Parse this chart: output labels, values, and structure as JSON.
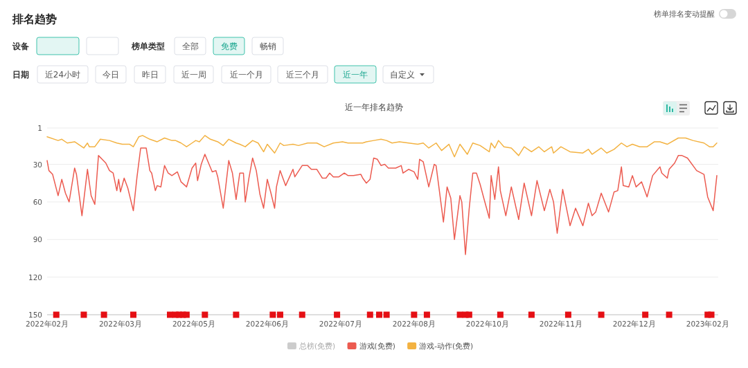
{
  "chart_data": [
    {
      "type": "other",
      "title": "排名趋势",
      "annotations": [
        "设备",
        "榜单类型",
        "全部",
        "免费",
        "畅销",
        "日期",
        "近24小时",
        "今日",
        "昨日",
        "近一周",
        "近一个月",
        "近三个月",
        "近一年",
        "自定义",
        "榜单排名变动提醒"
      ]
    },
    {
      "type": "line",
      "title": "近一年排名趋势",
      "xlim": [
        "2022-02-10",
        "2023-02-10"
      ],
      "xticks": [
        {
          "value": "2022-02-10",
          "label": "2022年02月"
        },
        {
          "value": "2022-03-22",
          "label": "2022年03月"
        },
        {
          "value": "2022-05-01",
          "label": "2022年05月"
        },
        {
          "value": "2022-06-10",
          "label": "2022年06月"
        },
        {
          "value": "2022-07-20",
          "label": "2022年07月"
        },
        {
          "value": "2022-08-29",
          "label": "2022年08月"
        },
        {
          "value": "2022-10-08",
          "label": "2022年10月"
        },
        {
          "value": "2022-11-17",
          "label": "2022年11月"
        },
        {
          "value": "2022-12-27",
          "label": "2022年12月"
        },
        {
          "value": "2023-02-05",
          "label": "2023年02月"
        }
      ],
      "ylim": [
        150,
        1
      ],
      "yticks": [
        1,
        30,
        60,
        90,
        120,
        150
      ],
      "grid": "y",
      "legend": "bottom",
      "series": [
        {
          "name": "总榜(免费)",
          "color": "#cccccc"
        },
        {
          "name": "游戏(免费)",
          "color": "#ec5b50",
          "x": [
            "2022-02-10",
            "2022-02-11",
            "2022-02-13",
            "2022-02-16",
            "2022-02-18",
            "2022-02-20",
            "2022-02-22",
            "2022-02-25",
            "2022-02-26",
            "2022-03-01",
            "2022-03-04",
            "2022-03-06",
            "2022-03-08",
            "2022-03-10",
            "2022-03-12",
            "2022-03-14",
            "2022-03-16",
            "2022-03-18",
            "2022-03-20",
            "2022-03-21",
            "2022-03-22",
            "2022-03-24",
            "2022-03-26",
            "2022-03-29",
            "2022-03-31",
            "2022-04-02",
            "2022-04-05",
            "2022-04-07",
            "2022-04-08",
            "2022-04-10",
            "2022-04-11",
            "2022-04-13",
            "2022-04-15",
            "2022-04-17",
            "2022-04-19",
            "2022-04-22",
            "2022-04-24",
            "2022-04-27",
            "2022-04-30",
            "2022-05-02",
            "2022-05-03",
            "2022-05-05",
            "2022-05-07",
            "2022-05-09",
            "2022-05-11",
            "2022-05-13",
            "2022-05-14",
            "2022-05-17",
            "2022-05-20",
            "2022-05-22",
            "2022-05-24",
            "2022-05-26",
            "2022-05-28",
            "2022-05-29",
            "2022-05-31",
            "2022-06-02",
            "2022-06-04",
            "2022-06-06",
            "2022-06-08",
            "2022-06-10",
            "2022-06-12",
            "2022-06-14",
            "2022-06-15",
            "2022-06-17",
            "2022-06-20",
            "2022-06-24",
            "2022-06-25",
            "2022-06-29",
            "2022-07-02",
            "2022-07-04",
            "2022-07-07",
            "2022-07-10",
            "2022-07-12",
            "2022-07-14",
            "2022-07-16",
            "2022-07-19",
            "2022-07-22",
            "2022-07-24",
            "2022-07-27",
            "2022-07-31",
            "2022-08-01",
            "2022-08-03",
            "2022-08-05",
            "2022-08-07",
            "2022-08-09",
            "2022-08-11",
            "2022-08-13",
            "2022-08-15",
            "2022-08-19",
            "2022-08-22",
            "2022-08-23",
            "2022-08-26",
            "2022-08-29",
            "2022-08-31",
            "2022-09-01",
            "2022-09-03",
            "2022-09-06",
            "2022-09-09",
            "2022-09-10",
            "2022-09-14",
            "2022-09-16",
            "2022-09-18",
            "2022-09-20",
            "2022-09-23",
            "2022-09-24",
            "2022-09-26",
            "2022-09-28",
            "2022-09-30",
            "2022-10-02",
            "2022-10-04",
            "2022-10-06",
            "2022-10-09",
            "2022-10-10",
            "2022-10-12",
            "2022-10-14",
            "2022-10-15",
            "2022-10-18",
            "2022-10-21",
            "2022-10-25",
            "2022-10-28",
            "2022-11-01",
            "2022-11-04",
            "2022-11-08",
            "2022-11-11",
            "2022-11-13",
            "2022-11-15",
            "2022-11-18",
            "2022-11-22",
            "2022-11-25",
            "2022-11-27",
            "2022-11-29",
            "2022-12-02",
            "2022-12-04",
            "2022-12-06",
            "2022-12-09",
            "2022-12-13",
            "2022-12-16",
            "2022-12-18",
            "2022-12-20",
            "2022-12-21",
            "2022-12-24",
            "2022-12-26",
            "2022-12-28",
            "2022-12-31",
            "2023-01-03",
            "2023-01-06",
            "2023-01-10",
            "2023-01-11",
            "2023-01-14",
            "2023-01-15",
            "2023-01-18",
            "2023-01-20",
            "2023-01-22",
            "2023-01-25",
            "2023-01-30",
            "2023-02-03",
            "2023-02-05",
            "2023-02-08",
            "2023-02-10"
          ],
          "values": [
            27,
            35,
            38,
            55,
            42,
            53,
            60,
            33,
            38,
            71,
            34,
            55,
            62,
            23,
            26,
            29,
            35,
            37,
            51,
            42,
            52,
            41,
            49,
            67,
            40,
            17,
            17,
            35,
            37,
            51,
            47,
            48,
            31,
            37,
            39,
            36,
            44,
            48,
            33,
            29,
            43,
            30,
            22,
            29,
            36,
            35,
            40,
            65,
            27,
            37,
            58,
            37,
            37,
            60,
            41,
            25,
            35,
            54,
            65,
            42,
            53,
            65,
            48,
            35,
            47,
            34,
            40,
            31,
            31,
            34,
            34,
            41,
            41,
            37,
            40,
            40,
            37,
            39,
            39,
            38,
            41,
            45,
            42,
            25,
            26,
            31,
            30,
            33,
            33,
            31,
            37,
            34,
            36,
            42,
            26,
            28,
            48,
            30,
            31,
            76,
            48,
            57,
            90,
            55,
            60,
            102,
            66,
            37,
            37,
            46,
            57,
            73,
            39,
            58,
            32,
            51,
            71,
            48,
            74,
            45,
            71,
            43,
            67,
            50,
            60,
            85,
            50,
            79,
            65,
            72,
            79,
            61,
            71,
            68,
            53,
            68,
            52,
            51,
            32,
            47,
            48,
            39,
            48,
            44,
            56,
            39,
            32,
            37,
            41,
            34,
            29,
            23,
            23,
            25,
            35,
            38,
            56,
            67,
            39
          ]
        },
        {
          "name": "游戏-动作(免费)",
          "color": "#f3b241",
          "x": [
            "2022-02-10",
            "2022-02-16",
            "2022-02-18",
            "2022-02-21",
            "2022-02-25",
            "2022-03-02",
            "2022-03-04",
            "2022-03-05",
            "2022-03-08",
            "2022-03-11",
            "2022-03-16",
            "2022-03-20",
            "2022-03-23",
            "2022-03-27",
            "2022-03-29",
            "2022-04-01",
            "2022-04-03",
            "2022-04-07",
            "2022-04-11",
            "2022-04-15",
            "2022-04-19",
            "2022-04-21",
            "2022-04-24",
            "2022-04-27",
            "2022-04-30",
            "2022-05-02",
            "2022-05-04",
            "2022-05-07",
            "2022-05-10",
            "2022-05-14",
            "2022-05-17",
            "2022-05-20",
            "2022-05-24",
            "2022-05-26",
            "2022-05-29",
            "2022-06-02",
            "2022-06-05",
            "2022-06-08",
            "2022-06-10",
            "2022-06-14",
            "2022-06-17",
            "2022-06-19",
            "2022-06-24",
            "2022-06-27",
            "2022-07-02",
            "2022-07-07",
            "2022-07-11",
            "2022-07-16",
            "2022-07-21",
            "2022-07-24",
            "2022-08-01",
            "2022-08-03",
            "2022-08-07",
            "2022-08-11",
            "2022-08-14",
            "2022-08-17",
            "2022-08-21",
            "2022-08-26",
            "2022-08-31",
            "2022-09-03",
            "2022-09-06",
            "2022-09-10",
            "2022-09-13",
            "2022-09-17",
            "2022-09-20",
            "2022-09-23",
            "2022-09-27",
            "2022-09-30",
            "2022-10-04",
            "2022-10-09",
            "2022-10-10",
            "2022-10-12",
            "2022-10-14",
            "2022-10-17",
            "2022-10-21",
            "2022-10-25",
            "2022-10-28",
            "2022-11-01",
            "2022-11-05",
            "2022-11-08",
            "2022-11-12",
            "2022-11-13",
            "2022-11-17",
            "2022-11-22",
            "2022-11-29",
            "2022-12-02",
            "2022-12-04",
            "2022-12-09",
            "2022-12-12",
            "2022-12-16",
            "2022-12-20",
            "2022-12-23",
            "2022-12-26",
            "2022-12-30",
            "2023-01-03",
            "2023-01-07",
            "2023-01-10",
            "2023-01-14",
            "2023-01-20",
            "2023-01-24",
            "2023-01-28",
            "2023-02-03",
            "2023-02-06",
            "2023-02-08",
            "2023-02-10"
          ],
          "values": [
            8,
            11,
            10,
            13,
            12,
            17,
            13,
            16,
            16,
            10,
            11,
            13,
            14,
            14,
            16,
            8,
            7,
            10,
            12,
            9,
            11,
            11,
            13,
            16,
            13,
            11,
            12,
            7,
            10,
            12,
            15,
            10,
            13,
            14,
            16,
            11,
            13,
            20,
            14,
            21,
            13,
            15,
            14,
            15,
            13,
            13,
            16,
            13,
            12,
            13,
            13,
            12,
            11,
            10,
            11,
            13,
            12,
            13,
            14,
            13,
            17,
            13,
            19,
            14,
            24,
            14,
            22,
            13,
            15,
            20,
            13,
            17,
            11,
            16,
            17,
            23,
            16,
            20,
            16,
            20,
            16,
            21,
            16,
            20,
            21,
            18,
            22,
            17,
            21,
            18,
            13,
            16,
            14,
            16,
            16,
            12,
            12,
            14,
            9,
            9,
            11,
            13,
            16,
            16,
            13
          ]
        },
        {
          "type": "scatter",
          "color": "#e50f14",
          "marker": "square",
          "x": [
            "2022-02-15",
            "2022-03-02",
            "2022-03-13",
            "2022-03-29",
            "2022-04-18",
            "2022-04-21",
            "2022-04-23",
            "2022-04-25",
            "2022-04-27",
            "2022-05-07",
            "2022-05-24",
            "2022-06-13",
            "2022-06-17",
            "2022-06-29",
            "2022-07-18",
            "2022-08-05",
            "2022-08-10",
            "2022-08-14",
            "2022-08-29",
            "2022-09-05",
            "2022-09-23",
            "2022-09-26",
            "2022-09-28",
            "2022-10-15",
            "2022-11-01",
            "2022-11-21",
            "2022-12-09",
            "2023-01-02",
            "2023-01-15",
            "2023-02-05",
            "2023-02-07"
          ],
          "values": [
            150,
            150,
            150,
            150,
            150,
            150,
            150,
            150,
            150,
            150,
            150,
            150,
            150,
            150,
            150,
            150,
            150,
            150,
            150,
            150,
            150,
            150,
            150,
            150,
            150,
            150,
            150,
            150,
            150,
            150,
            150
          ]
        }
      ]
    }
  ]
}
